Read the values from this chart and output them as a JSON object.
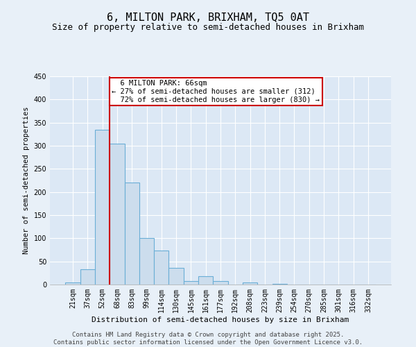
{
  "title": "6, MILTON PARK, BRIXHAM, TQ5 0AT",
  "subtitle": "Size of property relative to semi-detached houses in Brixham",
  "xlabel": "Distribution of semi-detached houses by size in Brixham",
  "ylabel": "Number of semi-detached properties",
  "categories": [
    "21sqm",
    "37sqm",
    "52sqm",
    "68sqm",
    "83sqm",
    "99sqm",
    "114sqm",
    "130sqm",
    "145sqm",
    "161sqm",
    "177sqm",
    "192sqm",
    "208sqm",
    "223sqm",
    "239sqm",
    "254sqm",
    "270sqm",
    "285sqm",
    "301sqm",
    "316sqm",
    "332sqm"
  ],
  "values": [
    4,
    33,
    335,
    305,
    220,
    100,
    73,
    36,
    8,
    18,
    8,
    0,
    5,
    0,
    1,
    0,
    0,
    0,
    0,
    0,
    0
  ],
  "bar_color": "#ccdded",
  "bar_edge_color": "#6aaed6",
  "bar_linewidth": 0.8,
  "property_label": "6 MILTON PARK: 66sqm",
  "pct_smaller": 27,
  "pct_larger": 72,
  "count_smaller": 312,
  "count_larger": 830,
  "line_color": "#cc0000",
  "annotation_box_color": "#cc0000",
  "ylim": [
    0,
    450
  ],
  "background_color": "#e8f0f8",
  "plot_bg_color": "#dce8f5",
  "footer_line1": "Contains HM Land Registry data © Crown copyright and database right 2025.",
  "footer_line2": "Contains public sector information licensed under the Open Government Licence v3.0.",
  "title_fontsize": 11,
  "subtitle_fontsize": 9,
  "annotation_fontsize": 7.5,
  "tick_fontsize": 7,
  "footer_fontsize": 6.5,
  "xlabel_fontsize": 8,
  "ylabel_fontsize": 7.5
}
